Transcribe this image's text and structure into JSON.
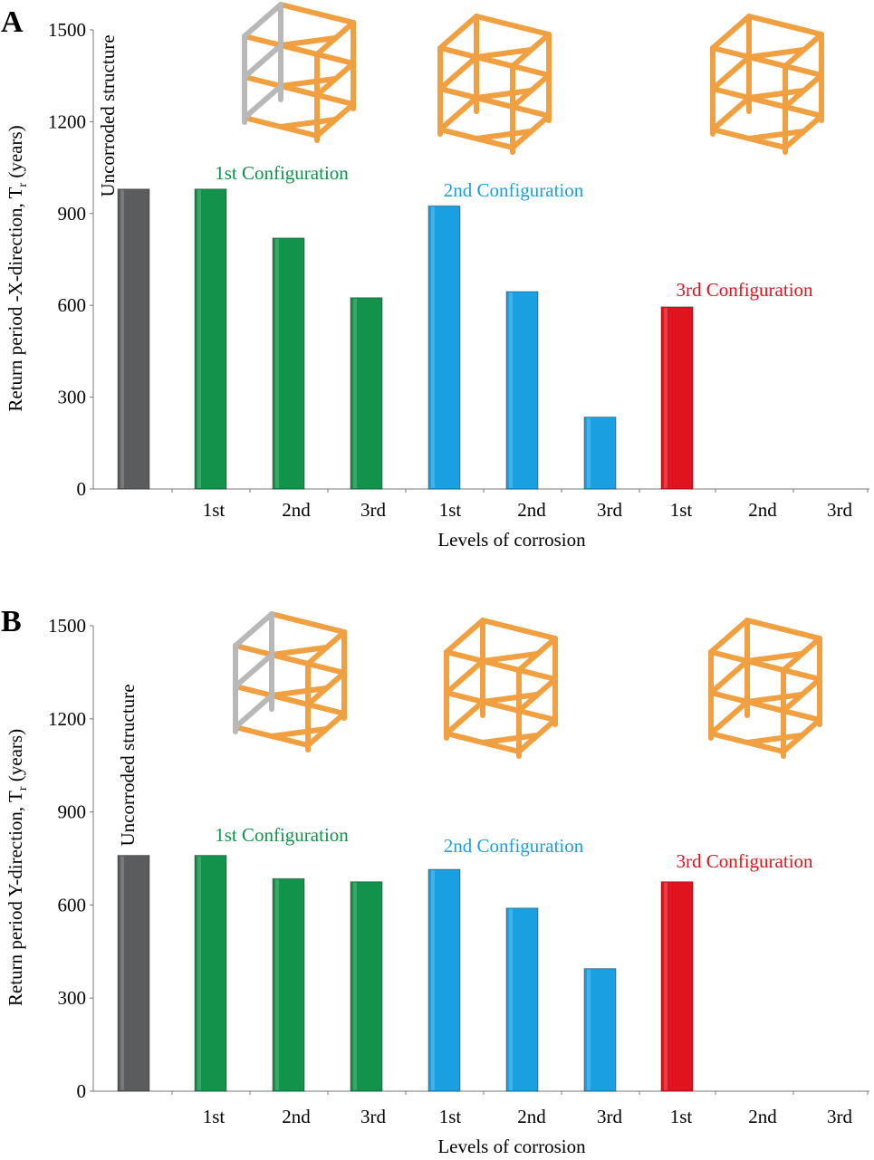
{
  "colors": {
    "uncorroded": "#5b5c5e",
    "config1": "#12924a",
    "config2": "#1aa0e0",
    "config3": "#e0141e",
    "axis": "#777777",
    "text": "#000000",
    "frame_orange": "#f0a040",
    "frame_grey": "#b8b8b8"
  },
  "chart_data": [
    {
      "panel": "A",
      "type": "bar",
      "xlabel": "Levels of corrosion",
      "ylabel_main": "Return period -X-direction, T",
      "ylabel_sub": "r",
      "ylabel_tail": " (years)",
      "ylim": [
        0,
        1500
      ],
      "yticks": [
        "0",
        "300",
        "600",
        "900",
        "1200",
        "1500"
      ],
      "categories": [
        "",
        "1st",
        "2nd",
        "3rd",
        "1st",
        "2nd",
        "3rd",
        "1st",
        "2nd",
        "3rd"
      ],
      "bars": [
        {
          "group": "uncorroded",
          "value": 980
        },
        {
          "group": "config1",
          "value": 980
        },
        {
          "group": "config1",
          "value": 820
        },
        {
          "group": "config1",
          "value": 625
        },
        {
          "group": "config2",
          "value": 925
        },
        {
          "group": "config2",
          "value": 645
        },
        {
          "group": "config2",
          "value": 235
        },
        {
          "group": "config3",
          "value": 595
        },
        {
          "group": "config3",
          "value": null
        },
        {
          "group": "config3",
          "value": null
        }
      ],
      "group_labels": {
        "uncorroded": "Uncorroded structure",
        "config1": "1st Configuration",
        "config2": "2nd Configuration",
        "config3": "3rd Configuration"
      },
      "frame_insets": [
        "1st Configuration",
        "2nd Configuration",
        "3rd Configuration"
      ]
    },
    {
      "panel": "B",
      "type": "bar",
      "xlabel": "Levels of corrosion",
      "ylabel_main": "Return period Y-direction, T",
      "ylabel_sub": "r",
      "ylabel_tail": " (years)",
      "ylim": [
        0,
        1500
      ],
      "yticks": [
        "0",
        "300",
        "600",
        "900",
        "1200",
        "1500"
      ],
      "categories": [
        "",
        "1st",
        "2nd",
        "3rd",
        "1st",
        "2nd",
        "3rd",
        "1st",
        "2nd",
        "3rd"
      ],
      "bars": [
        {
          "group": "uncorroded",
          "value": 760
        },
        {
          "group": "config1",
          "value": 760
        },
        {
          "group": "config1",
          "value": 685
        },
        {
          "group": "config1",
          "value": 675
        },
        {
          "group": "config2",
          "value": 715
        },
        {
          "group": "config2",
          "value": 590
        },
        {
          "group": "config2",
          "value": 395
        },
        {
          "group": "config3",
          "value": 675
        },
        {
          "group": "config3",
          "value": null
        },
        {
          "group": "config3",
          "value": null
        }
      ],
      "group_labels": {
        "uncorroded": "Uncorroded structure",
        "config1": "1st Configuration",
        "config2": "2nd Configuration",
        "config3": "3rd Configuration"
      },
      "frame_insets": [
        "1st Configuration",
        "2nd Configuration",
        "3rd Configuration"
      ]
    }
  ]
}
